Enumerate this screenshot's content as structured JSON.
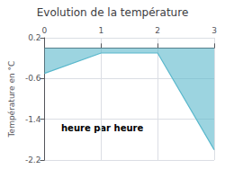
{
  "chart_data": {
    "type": "area",
    "title": "Evolution de la température",
    "xlabel": "heure par heure",
    "ylabel": "Température en °C",
    "x": [
      0,
      1,
      2,
      3
    ],
    "values": [
      -0.5,
      -0.1,
      -0.1,
      -2.0
    ],
    "xlim": [
      0,
      3
    ],
    "ylim": [
      -2.2,
      0.2
    ],
    "xticks": [
      0,
      1,
      2,
      3
    ],
    "yticks": [
      0.2,
      -0.6,
      -1.4,
      -2.2
    ],
    "grid": true,
    "color": "#5ab8cc"
  }
}
